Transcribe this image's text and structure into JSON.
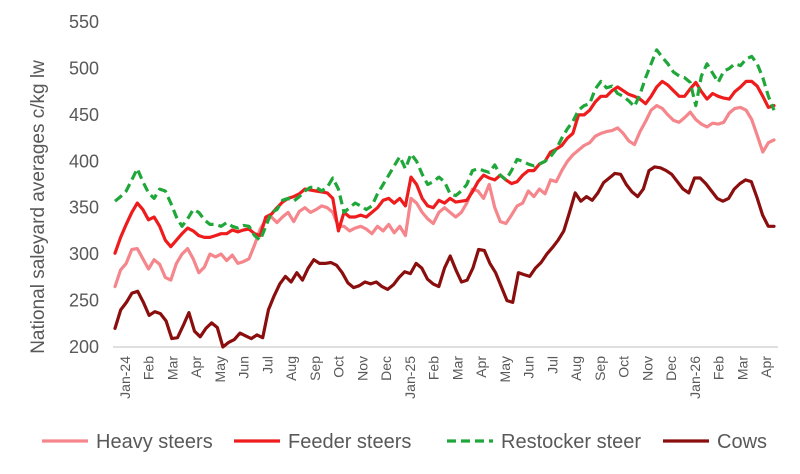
{
  "chart_data": {
    "type": "line",
    "title": "",
    "xlabel": "",
    "ylabel": "National saleyard averages c/kg lw",
    "ylim": [
      200,
      550
    ],
    "yticks": [
      200,
      250,
      300,
      350,
      400,
      450,
      500,
      550
    ],
    "grid": false,
    "legend_position": "bottom",
    "x_tick_labels": [
      "Jan-24",
      "Feb",
      "Mar",
      "Apr",
      "May",
      "Jun",
      "Jul",
      "Aug",
      "Sep",
      "Oct",
      "Nov",
      "Dec",
      "Jan-25",
      "Feb",
      "Mar",
      "Apr",
      "May",
      "Jun",
      "Jul",
      "Aug",
      "Sep",
      "Oct",
      "Nov",
      "Dec",
      "Jan-26",
      "Feb",
      "Mar",
      "Apr"
    ],
    "series": [
      {
        "name": "Heavy steers",
        "color": "#f4868c",
        "style": "solid",
        "values": [
          265,
          283,
          290,
          305,
          306,
          295,
          284,
          294,
          289,
          275,
          272,
          290,
          300,
          306,
          295,
          280,
          286,
          300,
          297,
          300,
          293,
          299,
          290,
          292,
          295,
          310,
          327,
          337,
          340,
          334,
          340,
          345,
          335,
          346,
          350,
          345,
          348,
          352,
          350,
          345,
          330,
          330,
          325,
          328,
          330,
          327,
          322,
          330,
          325,
          332,
          323,
          330,
          320,
          360,
          355,
          345,
          338,
          333,
          345,
          350,
          345,
          340,
          345,
          355,
          370,
          368,
          360,
          375,
          350,
          335,
          333,
          342,
          352,
          355,
          368,
          362,
          370,
          365,
          380,
          378,
          390,
          400,
          407,
          412,
          417,
          420,
          427,
          430,
          432,
          433,
          436,
          430,
          422,
          418,
          432,
          443,
          455,
          460,
          457,
          450,
          444,
          442,
          447,
          453,
          445,
          440,
          437,
          441,
          440,
          442,
          452,
          457,
          458,
          455,
          445,
          428,
          410,
          420,
          423
        ]
      },
      {
        "name": "Feeder steers",
        "color": "#ee1c1c",
        "style": "solid",
        "values": [
          301,
          318,
          332,
          345,
          355,
          348,
          337,
          340,
          330,
          315,
          308,
          315,
          322,
          328,
          325,
          320,
          318,
          318,
          320,
          322,
          322,
          326,
          324,
          326,
          327,
          322,
          320,
          340,
          343,
          350,
          356,
          360,
          362,
          365,
          370,
          369,
          368,
          367,
          366,
          360,
          325,
          345,
          340,
          340,
          342,
          340,
          345,
          350,
          358,
          360,
          355,
          360,
          352,
          383,
          375,
          360,
          352,
          350,
          358,
          355,
          360,
          356,
          357,
          358,
          367,
          378,
          385,
          382,
          380,
          385,
          380,
          376,
          378,
          385,
          390,
          390,
          397,
          400,
          410,
          413,
          417,
          425,
          430,
          450,
          450,
          455,
          464,
          470,
          470,
          476,
          480,
          476,
          472,
          470,
          467,
          462,
          470,
          480,
          486,
          482,
          476,
          470,
          470,
          478,
          485,
          475,
          467,
          473,
          470,
          468,
          467,
          475,
          480,
          486,
          486,
          481,
          470,
          458,
          460
        ]
      },
      {
        "name": "Restocker steer",
        "color": "#20a73a",
        "style": "dashed",
        "values": [
          357,
          362,
          368,
          380,
          392,
          378,
          366,
          360,
          370,
          368,
          355,
          340,
          330,
          338,
          348,
          345,
          337,
          332,
          332,
          330,
          334,
          330,
          328,
          331,
          330,
          320,
          315,
          330,
          345,
          348,
          358,
          360,
          357,
          362,
          368,
          372,
          372,
          368,
          372,
          382,
          370,
          345,
          350,
          355,
          352,
          348,
          352,
          365,
          375,
          385,
          395,
          405,
          392,
          408,
          400,
          386,
          375,
          378,
          383,
          378,
          365,
          363,
          368,
          375,
          390,
          392,
          390,
          388,
          396,
          385,
          380,
          390,
          402,
          400,
          397,
          395,
          397,
          400,
          405,
          413,
          425,
          435,
          443,
          455,
          460,
          462,
          478,
          486,
          479,
          481,
          473,
          470,
          465,
          459,
          472,
          490,
          505,
          520,
          512,
          505,
          496,
          492,
          490,
          485,
          460,
          492,
          505,
          495,
          485,
          497,
          500,
          505,
          503,
          510,
          513,
          505,
          490,
          470,
          455
        ]
      },
      {
        "name": "Cows",
        "color": "#8b0e0e",
        "style": "solid",
        "values": [
          220,
          240,
          248,
          258,
          260,
          248,
          234,
          238,
          236,
          228,
          209,
          210,
          223,
          237,
          217,
          211,
          220,
          226,
          221,
          200,
          205,
          208,
          215,
          212,
          209,
          213,
          210,
          240,
          255,
          268,
          276,
          270,
          280,
          272,
          285,
          294,
          290,
          290,
          291,
          288,
          280,
          269,
          264,
          266,
          270,
          268,
          270,
          265,
          262,
          267,
          275,
          281,
          279,
          290,
          285,
          273,
          268,
          265,
          285,
          298,
          283,
          270,
          272,
          285,
          305,
          304,
          290,
          280,
          265,
          250,
          248,
          280,
          278,
          276,
          285,
          291,
          300,
          307,
          315,
          325,
          345,
          366,
          357,
          362,
          358,
          366,
          377,
          382,
          387,
          386,
          375,
          367,
          362,
          370,
          390,
          394,
          393,
          390,
          386,
          378,
          370,
          366,
          382,
          382,
          376,
          368,
          360,
          357,
          360,
          370,
          376,
          380,
          378,
          361,
          342,
          330,
          330
        ]
      }
    ]
  }
}
